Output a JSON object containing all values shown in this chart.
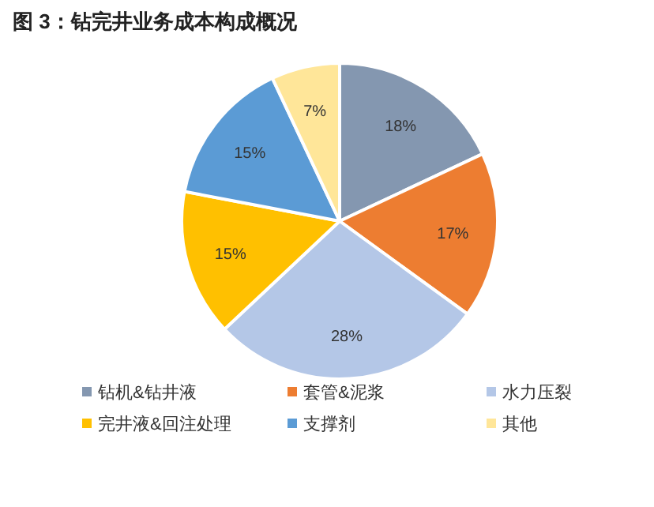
{
  "chart_data": {
    "type": "pie",
    "title": "图 3：钻完井业务成本构成概况",
    "categories": [
      "钻机&钻井液",
      "套管&泥浆",
      "水力压裂",
      "完井液&回注处理",
      "支撑剂",
      "其他"
    ],
    "values": [
      18,
      17,
      28,
      15,
      15,
      7
    ],
    "colors": [
      "#8497b0",
      "#ed7d31",
      "#b4c7e7",
      "#ffc000",
      "#5b9bd5",
      "#ffe699"
    ],
    "value_labels": [
      "18%",
      "17%",
      "28%",
      "15%",
      "15%",
      "7%"
    ],
    "legend": "bottom"
  }
}
